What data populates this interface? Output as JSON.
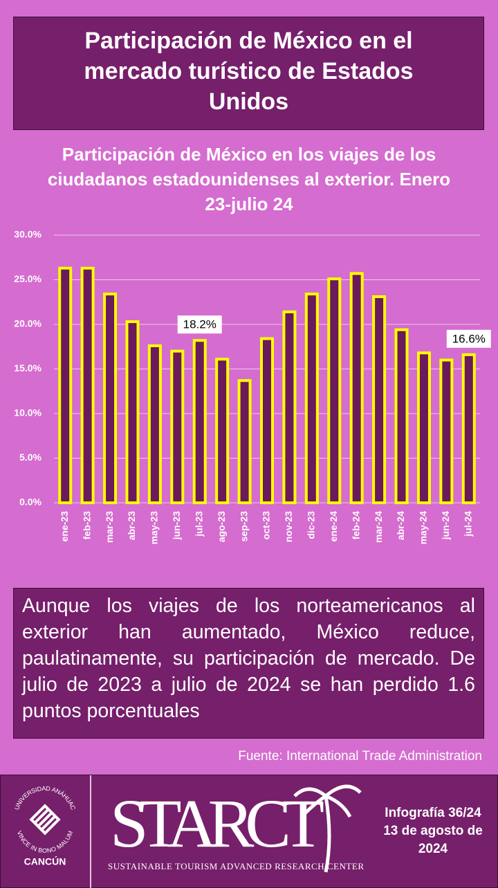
{
  "header": {
    "title": "Participación de México en el mercado turístico de Estados Unidos"
  },
  "chart_data": {
    "type": "bar",
    "title": "Participación de México en los viajes de los ciudadanos estadounidenses al exterior. Enero 23-julio 24",
    "categories": [
      "ene-23",
      "feb-23",
      "mar-23",
      "abr-23",
      "may-23",
      "jun-23",
      "jul-23",
      "ago-23",
      "sep-23",
      "oct-23",
      "nov-23",
      "dic-23",
      "ene-24",
      "feb-24",
      "mar-24",
      "abr-24",
      "may-24",
      "jun-24",
      "jul-24"
    ],
    "values": [
      26.3,
      26.3,
      23.4,
      20.3,
      17.6,
      17.0,
      18.2,
      16.1,
      13.7,
      18.4,
      21.4,
      23.4,
      25.1,
      25.7,
      23.1,
      19.4,
      16.8,
      16.0,
      16.6
    ],
    "value_labels": [
      null,
      null,
      null,
      null,
      null,
      null,
      "18.2%",
      null,
      null,
      null,
      null,
      null,
      null,
      null,
      null,
      null,
      null,
      null,
      "16.6%"
    ],
    "color": "#6b1a5c",
    "edge_color": "#ffff00",
    "ylim": [
      0,
      30
    ],
    "yticks": [
      {
        "value": 0,
        "label": "0.0%"
      },
      {
        "value": 5,
        "label": "5.0%"
      },
      {
        "value": 10,
        "label": "10.0%"
      },
      {
        "value": 15,
        "label": "15.0%"
      },
      {
        "value": 20,
        "label": "20.0%"
      },
      {
        "value": 25,
        "label": "25.0%"
      },
      {
        "value": 30,
        "label": "30.0%"
      }
    ],
    "grid": true
  },
  "note": {
    "text": "Aunque los viajes de los norteamericanos al exterior han aumentado, México reduce, paulatinamente, su participación de mercado. De julio de 2023 a julio de 2024 se han perdido 1.6 puntos porcentuales"
  },
  "source": "Fuente: International Trade Administration",
  "footer": {
    "logo_top": "UNIVERSIDAD ANÁHUAC",
    "logo_motto": "VINCE IN BONO MALUM",
    "logo_campus": "CANCÚN",
    "brand": "STARCT",
    "brand_sub": "SUSTAINABLE TOURISM ADVANCED RESEARCH CENTER",
    "info": "Infografía 36/24",
    "date": "13 de agosto de 2024"
  }
}
